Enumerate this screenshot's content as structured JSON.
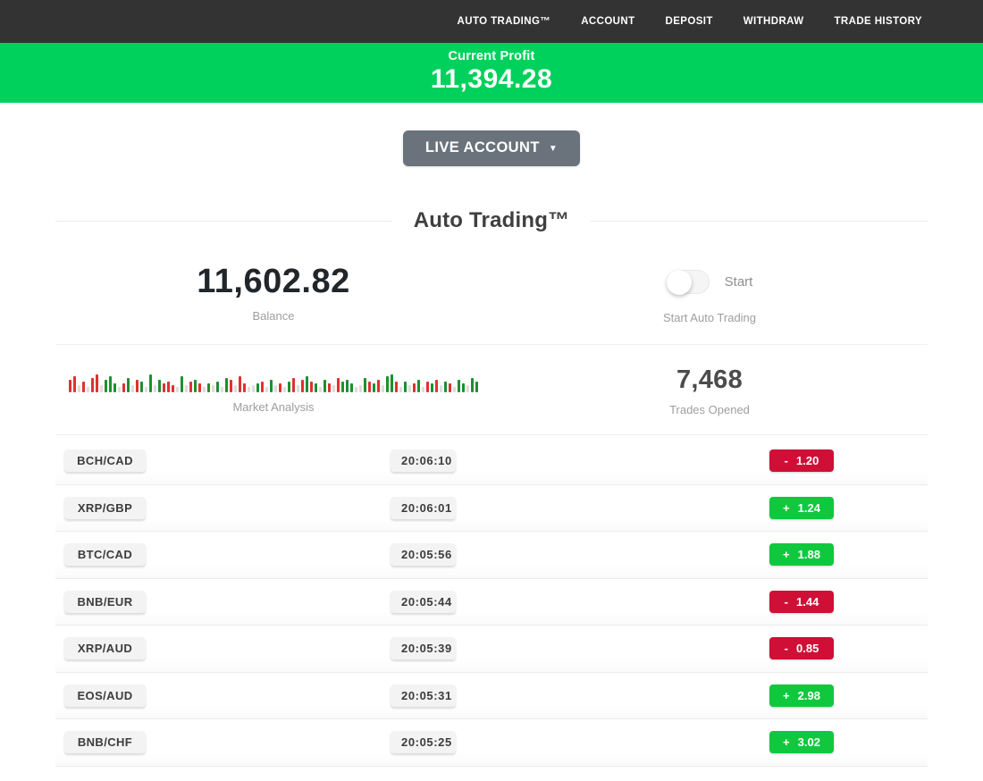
{
  "nav": {
    "items": [
      "AUTO TRADING™",
      "ACCOUNT",
      "DEPOSIT",
      "WITHDRAW",
      "TRADE HISTORY"
    ]
  },
  "profit_banner": {
    "label": "Current Profit",
    "value": "11,394.28"
  },
  "account_selector": {
    "label": "LIVE ACCOUNT",
    "caret": "▼"
  },
  "section_title": "Auto Trading™",
  "stats": {
    "balance": {
      "value": "11,602.82",
      "caption": "Balance"
    },
    "auto_trading": {
      "toggle_label": "Start",
      "caption": "Start Auto Trading",
      "toggle_state": "off"
    },
    "market_analysis": {
      "caption": "Market Analysis"
    },
    "trades_opened": {
      "value": "7,468",
      "caption": "Trades Opened"
    }
  },
  "market_bars": [
    "r14",
    "r18",
    "n8",
    "r12",
    "n6",
    "r16",
    "r20",
    "n8",
    "g14",
    "g18",
    "g10",
    "n6",
    "r10",
    "g16",
    "n8",
    "r14",
    "g12",
    "n6",
    "g20",
    "n8",
    "g14",
    "r10",
    "r12",
    "r8",
    "n6",
    "g18",
    "n8",
    "r12",
    "g14",
    "r10",
    "n6",
    "g10",
    "n8",
    "g12",
    "n6",
    "g16",
    "r14",
    "n8",
    "r18",
    "r10",
    "n6",
    "n8",
    "g10",
    "r12",
    "n6",
    "g14",
    "n8",
    "r10",
    "n6",
    "g12",
    "r16",
    "n8",
    "r14",
    "g18",
    "r12",
    "g10",
    "n6",
    "g14",
    "r10",
    "n8",
    "r16",
    "g12",
    "g14",
    "g10",
    "n6",
    "n8",
    "g16",
    "r12",
    "g10",
    "r14",
    "n8",
    "g18",
    "g20",
    "r12",
    "n6",
    "g12",
    "n8",
    "r10",
    "g14",
    "n6",
    "r12",
    "g10",
    "r14",
    "n8",
    "g12",
    "r10",
    "n6",
    "g14",
    "g10",
    "n8",
    "g16",
    "g12"
  ],
  "trades": [
    {
      "pair": "BCH/CAD",
      "time": "20:06:10",
      "sign": "-",
      "value": "1.20",
      "outcome": "loss"
    },
    {
      "pair": "XRP/GBP",
      "time": "20:06:01",
      "sign": "+",
      "value": "1.24",
      "outcome": "profit"
    },
    {
      "pair": "BTC/CAD",
      "time": "20:05:56",
      "sign": "+",
      "value": "1.88",
      "outcome": "profit"
    },
    {
      "pair": "BNB/EUR",
      "time": "20:05:44",
      "sign": "-",
      "value": "1.44",
      "outcome": "loss"
    },
    {
      "pair": "XRP/AUD",
      "time": "20:05:39",
      "sign": "-",
      "value": "0.85",
      "outcome": "loss"
    },
    {
      "pair": "EOS/AUD",
      "time": "20:05:31",
      "sign": "+",
      "value": "2.98",
      "outcome": "profit"
    },
    {
      "pair": "BNB/CHF",
      "time": "20:05:25",
      "sign": "+",
      "value": "3.02",
      "outcome": "profit"
    }
  ],
  "colors": {
    "nav_bg": "#333333",
    "banner_green": "#00d15c",
    "badge_green": "#10c83e",
    "badge_red": "#d00f36",
    "bar_green": "#1f8f2f",
    "bar_red": "#e03131",
    "bar_neutral": "#dcdcdc"
  }
}
